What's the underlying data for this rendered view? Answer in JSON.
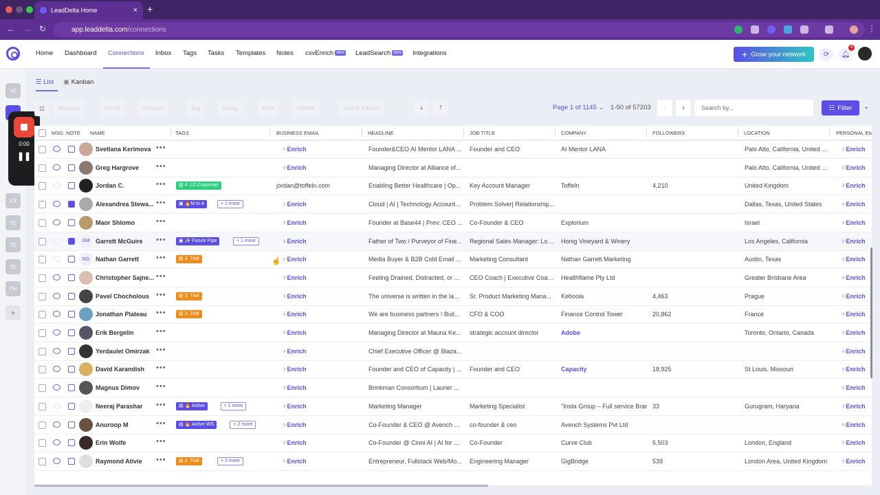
{
  "browser": {
    "tab_title": "LeadDelta Home",
    "url_host": "app.leaddelta.com",
    "url_path": "/connections"
  },
  "nav": {
    "items": [
      "Home",
      "Dashboard",
      "Connections",
      "Inbox",
      "Tags",
      "Tasks",
      "Templates",
      "Notes",
      "csvEnrich",
      "LeadSearch",
      "Integrations"
    ],
    "new_badge": "NEW",
    "active": "Connections",
    "grow_button": "Grow your network",
    "notification_count": "4"
  },
  "workspaces": [
    "VE",
    "",
    "XX",
    "TE",
    "TE",
    "DI",
    "PH",
    "+"
  ],
  "recorder": {
    "time": "0:00"
  },
  "views": {
    "list": "List",
    "kanban": "Kanban"
  },
  "toolbar": {
    "buttons": [
      "Message",
      "Enrich",
      "Remove",
      "Tag",
      "Untag",
      "Hide",
      "Unhide",
      "Add to Kanban"
    ]
  },
  "pager": {
    "page_label": "Page 1 of 1145",
    "count_label": "1-50 of 57203",
    "search_placeholder": "Search by...",
    "filter_label": "Filter"
  },
  "columns": [
    "MSG",
    "NOTE",
    "NAME",
    "TAGS",
    "BUSINESS EMAIL",
    "HEADLINE",
    "JOB TITLE",
    "COMPANY",
    "FOLLOWERS",
    "LOCATION",
    "PERSONAL EMAIL"
  ],
  "enrich_label": "Enrich",
  "tag_colors": {
    "green": "#2bcf7f",
    "purple": "#5b4ee6",
    "orange": "#f08c1a"
  },
  "rows": [
    {
      "name": "Svetlana Kerimova",
      "initials": "",
      "msg": true,
      "note": false,
      "tags": [],
      "email": "",
      "headline": "Founder&CEO AI Mentor LANA ...",
      "job": "Founder and CEO",
      "company": "AI Mentor LANA",
      "company_link": false,
      "followers": "",
      "location": "Palo Alto, California, United ..."
    },
    {
      "name": "Greg Hargrove",
      "initials": "",
      "msg": true,
      "note": false,
      "tags": [],
      "email": "",
      "headline": "Managing Director at Alliance of...",
      "job": "",
      "company": "",
      "company_link": false,
      "followers": "",
      "location": "Palo Alto, California, United ..."
    },
    {
      "name": "Jordan C.",
      "initials": "",
      "msg": false,
      "note": false,
      "tags": [
        {
          "label": "▤ 4. LD Customer",
          "color": "green"
        }
      ],
      "more": "",
      "email": "jordan@toffeln.com",
      "headline": "Enabling Better Healthcare | Op...",
      "job": "Key Account Manager",
      "company": "Toffeln",
      "company_link": false,
      "followers": "4,210",
      "location": "United Kingdom"
    },
    {
      "name": "Alexandrea Stewa...",
      "initials": "",
      "msg": true,
      "note": true,
      "tags": [
        {
          "label": "▣ 🔥M to A",
          "color": "purple"
        }
      ],
      "more": "+ 1 more",
      "email": "",
      "headline": "Cloud | AI | Technology Account...",
      "job": "Problem Solver| Relationship...",
      "company": "",
      "company_link": false,
      "followers": "",
      "location": "Dallas, Texas, United States"
    },
    {
      "name": "Maor Shlomo",
      "initials": "",
      "msg": true,
      "note": false,
      "tags": [],
      "email": "",
      "headline": "Founder at Base44 | Prev: CEO ...",
      "job": "Co-Founder & CEO",
      "company": "Explorium",
      "company_link": false,
      "followers": "",
      "location": "Israel"
    },
    {
      "name": "Garrett McGuire",
      "initials": "GM",
      "msg": false,
      "note": true,
      "tags": [
        {
          "label": "▣ ✨ Future Pipe",
          "color": "purple"
        }
      ],
      "more": "+ 1 more",
      "email": "",
      "headline": "Father of Two / Purveyor of Fine...",
      "job": "Regional Sales Manager: Los...",
      "company": "Honig Vineyard & Winery",
      "company_link": false,
      "followers": "",
      "location": "Los Angeles, California",
      "hl": true
    },
    {
      "name": "Nathan Garrett",
      "initials": "NG",
      "msg": false,
      "note": false,
      "tags": [
        {
          "label": "▤ 3. Trial",
          "color": "orange"
        }
      ],
      "more": "",
      "email": "",
      "headline": "Media Buyer & B2B Cold Email ...",
      "job": "Marketing Consultant",
      "company": "Nathan Garrett Marketing",
      "company_link": false,
      "followers": "",
      "location": "Austin, Texas"
    },
    {
      "name": "Christopher Sajne...",
      "initials": "",
      "msg": true,
      "note": false,
      "tags": [],
      "email": "",
      "headline": "Feeling Drained, Distracted, or ...",
      "job": "CEO Coach | Executive Coac...",
      "company": "Healthflame Pty Ltd",
      "company_link": false,
      "followers": "",
      "location": "Greater Brisbane Area"
    },
    {
      "name": "Pavel Chocholous",
      "initials": "",
      "msg": true,
      "note": false,
      "tags": [
        {
          "label": "▤ 3. Trial",
          "color": "orange"
        }
      ],
      "more": "",
      "email": "",
      "headline": "The universe is written in the la...",
      "job": "Sr. Product Marketing Mana...",
      "company": "Keboola",
      "company_link": false,
      "followers": "4,463",
      "location": "Prague"
    },
    {
      "name": "Jonathan Plateau",
      "initials": "",
      "msg": true,
      "note": false,
      "tags": [
        {
          "label": "▤ 3. Trial",
          "color": "orange"
        }
      ],
      "more": "",
      "email": "",
      "headline": "We are business partners ! Buil...",
      "job": "CFO & COO",
      "company": "Finance Control Tower",
      "company_link": false,
      "followers": "20,862",
      "location": "France"
    },
    {
      "name": "Erik Bergelin",
      "initials": "",
      "msg": true,
      "note": false,
      "tags": [],
      "email": "",
      "headline": "Managing Director at Mauna Ke...",
      "job": "strategic account director",
      "company": "Adobe",
      "company_link": true,
      "followers": "",
      "location": "Toronto, Ontario, Canada"
    },
    {
      "name": "Yerdaulet Omirzak",
      "initials": "",
      "msg": true,
      "note": false,
      "tags": [],
      "email": "",
      "headline": "Chief Executive Officer @ Blaza...",
      "job": "",
      "company": "",
      "company_link": false,
      "followers": "",
      "location": ""
    },
    {
      "name": "David Karandish",
      "initials": "",
      "msg": true,
      "note": false,
      "tags": [],
      "email": "",
      "headline": "Founder and CEO of Capacity | ...",
      "job": "Founder and CEO",
      "company": "Capacity",
      "company_link": true,
      "followers": "18,925",
      "location": "St Louis, Missouri"
    },
    {
      "name": "Magnus Dimov",
      "initials": "",
      "msg": true,
      "note": false,
      "tags": [],
      "email": "",
      "headline": "Brinkman Consortium | Laurier ...",
      "job": "",
      "company": "",
      "company_link": false,
      "followers": "",
      "location": ""
    },
    {
      "name": "Neeraj Parashar",
      "initials": "",
      "msg": false,
      "note": false,
      "tags": [
        {
          "label": "▤ 🔥 Active",
          "color": "purple"
        }
      ],
      "more": "+ 1 more",
      "email": "",
      "headline": "Marketing Manager",
      "job": "Marketing Specialist",
      "company": "\"Insta Group – Full service Brar",
      "company_link": false,
      "followers": "33",
      "location": "Gurugram, Haryana"
    },
    {
      "name": "Anuroop M",
      "initials": "",
      "msg": true,
      "note": false,
      "tags": [
        {
          "label": "▤ 🔥 Active WS",
          "color": "purple"
        }
      ],
      "more": "+ 2 more",
      "email": "",
      "headline": "Co-Founder & CEO @ Avench S...",
      "job": "co-founder & ceo",
      "company": "Avench Systems Pvt Ltd",
      "company_link": false,
      "followers": "",
      "location": ""
    },
    {
      "name": "Erin Wolfe",
      "initials": "",
      "msg": true,
      "note": false,
      "tags": [],
      "email": "",
      "headline": "Co-Founder @ Cinni AI | AI for ...",
      "job": "Co-Founder",
      "company": "Curve Club",
      "company_link": false,
      "followers": "5,503",
      "location": "London, England"
    },
    {
      "name": "Raymond Ativie",
      "initials": "",
      "msg": true,
      "note": false,
      "tags": [
        {
          "label": "▤ 3. Trial",
          "color": "orange"
        }
      ],
      "more": "+ 2 more",
      "email": "",
      "headline": "Entrepreneur, Fullstack Web/Mo...",
      "job": "Engineering Manager",
      "company": "GigBridge",
      "company_link": false,
      "followers": "539",
      "location": "London Area, United Kingdom"
    }
  ]
}
